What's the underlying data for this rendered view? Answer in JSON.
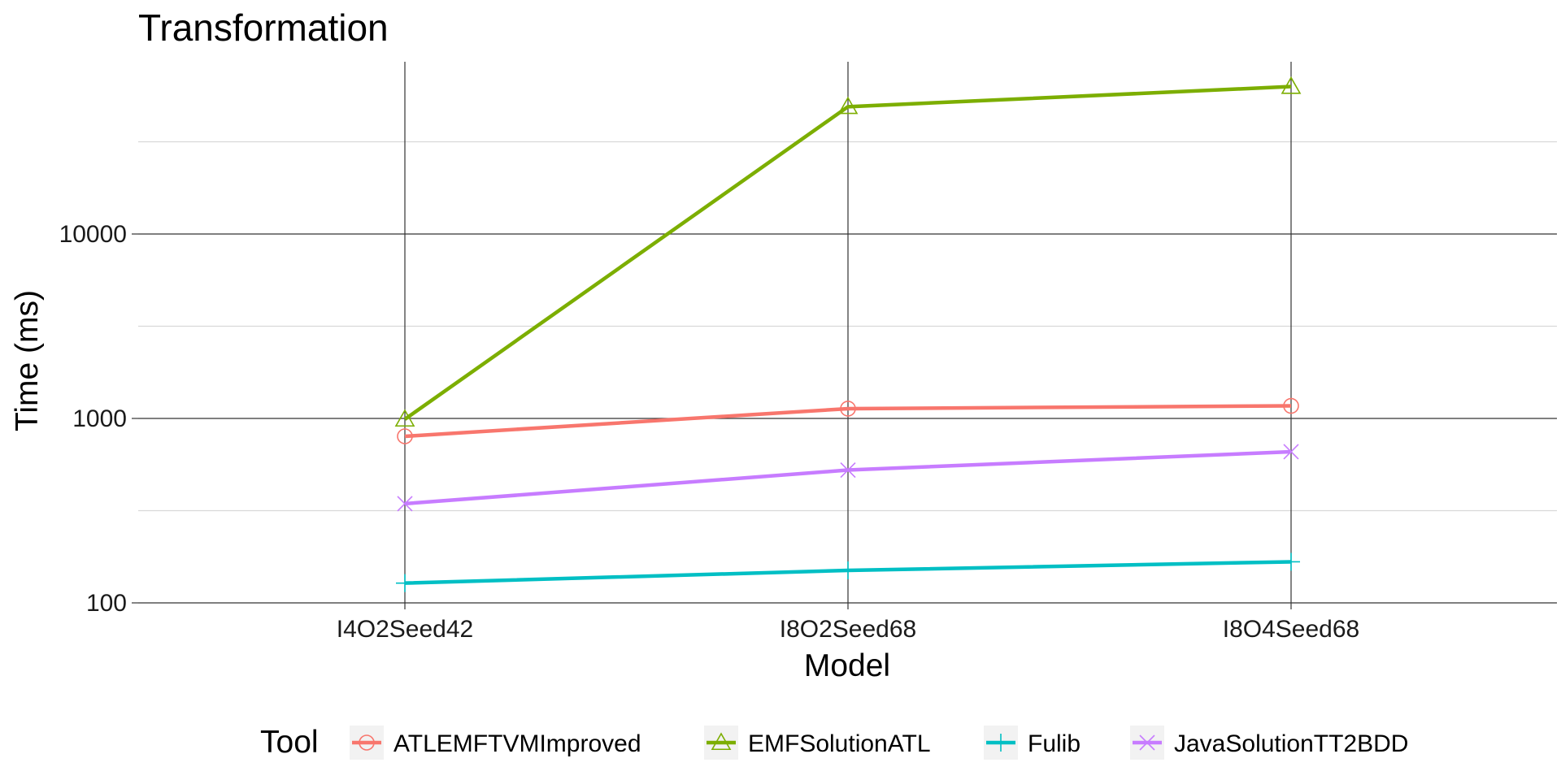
{
  "chart_data": {
    "type": "line",
    "title": "Transformation",
    "xlabel": "Model",
    "ylabel": "Time (ms)",
    "y_scale": "log10",
    "ylim": [
      100,
      100000
    ],
    "y_ticks": [
      100,
      1000,
      10000
    ],
    "y_tick_labels": [
      "100",
      "1000",
      "10000"
    ],
    "grid": true,
    "legend_position": "bottom",
    "legend_title": "Tool",
    "categories": [
      "I4O2Seed42",
      "I8O2Seed68",
      "I8O4Seed68"
    ],
    "series": [
      {
        "name": "ATLEMFTVMImproved",
        "color": "#F8766D",
        "marker": "circle",
        "values": [
          800,
          1130,
          1170
        ]
      },
      {
        "name": "EMFSolutionATL",
        "color": "#7CAE00",
        "marker": "triangle",
        "values": [
          990,
          49000,
          63000
        ]
      },
      {
        "name": "Fulib",
        "color": "#00BFC4",
        "marker": "plus",
        "values": [
          128,
          150,
          167
        ]
      },
      {
        "name": "JavaSolutionTT2BDD",
        "color": "#C77CFF",
        "marker": "cross",
        "values": [
          345,
          525,
          660
        ]
      }
    ]
  }
}
